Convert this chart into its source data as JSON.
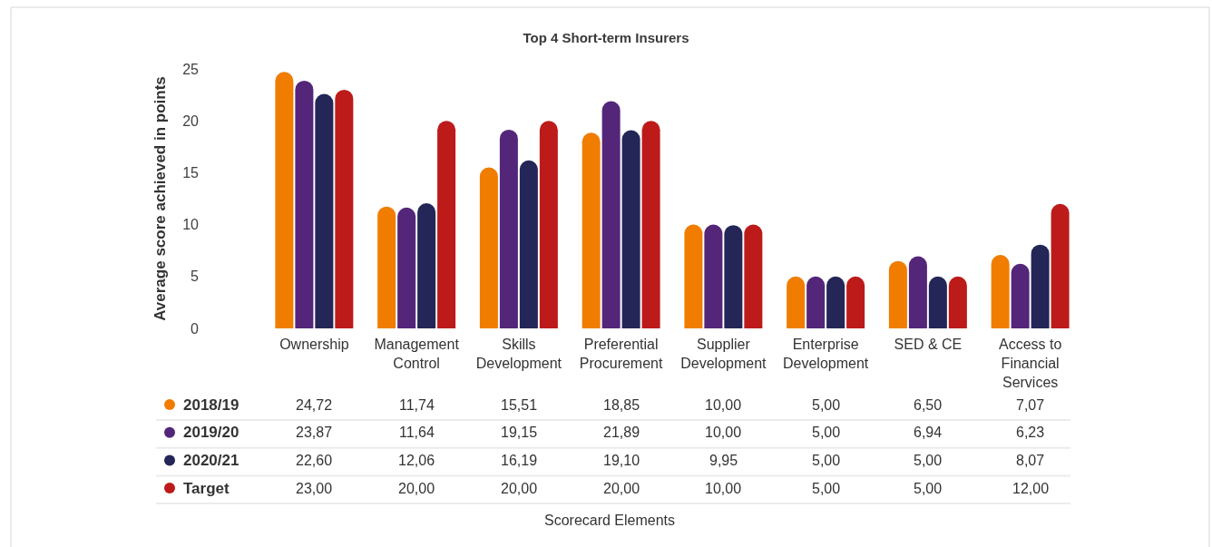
{
  "chart_data": {
    "type": "bar",
    "title": "Top 4 Short-term Insurers",
    "ylabel": "Average score achieved in points",
    "categories": [
      "Ownership",
      "Management Control",
      "Skills Development",
      "Preferential Procurement",
      "Supplier Development",
      "Enterprise Development",
      "SED & CE",
      "Access to Financial Services"
    ],
    "series": [
      {
        "name": "2018/19",
        "color": "#f07d00",
        "values": [
          24.72,
          11.74,
          15.51,
          18.85,
          10.0,
          5.0,
          6.5,
          7.07
        ],
        "value_labels": [
          "24,72",
          "11,74",
          "15,51",
          "18,85",
          "10,00",
          "5,00",
          "6,50",
          "7,07"
        ]
      },
      {
        "name": "2019/20",
        "color": "#54267a",
        "values": [
          23.87,
          11.64,
          19.15,
          21.89,
          10.0,
          5.0,
          6.94,
          6.23
        ],
        "value_labels": [
          "23,87",
          "11,64",
          "19,15",
          "21,89",
          "10,00",
          "5,00",
          "6,94",
          "6,23"
        ]
      },
      {
        "name": "2020/21",
        "color": "#232657",
        "values": [
          22.6,
          12.06,
          16.19,
          19.1,
          9.95,
          5.0,
          5.0,
          8.07
        ],
        "value_labels": [
          "22,60",
          "12,06",
          "16,19",
          "19,10",
          "9,95",
          "5,00",
          "5,00",
          "8,07"
        ]
      },
      {
        "name": "Target",
        "color": "#bd1a1a",
        "values": [
          23.0,
          20.0,
          20.0,
          20.0,
          10.0,
          5.0,
          5.0,
          12.0
        ],
        "value_labels": [
          "23,00",
          "20,00",
          "20,00",
          "20,00",
          "10,00",
          "5,00",
          "5,00",
          "12,00"
        ]
      }
    ],
    "ylim": [
      0,
      25
    ],
    "yticks": [
      0,
      5,
      10,
      15,
      20,
      25
    ],
    "legend": "bottom left",
    "annotations": [
      "Scorecard Elements"
    ]
  }
}
